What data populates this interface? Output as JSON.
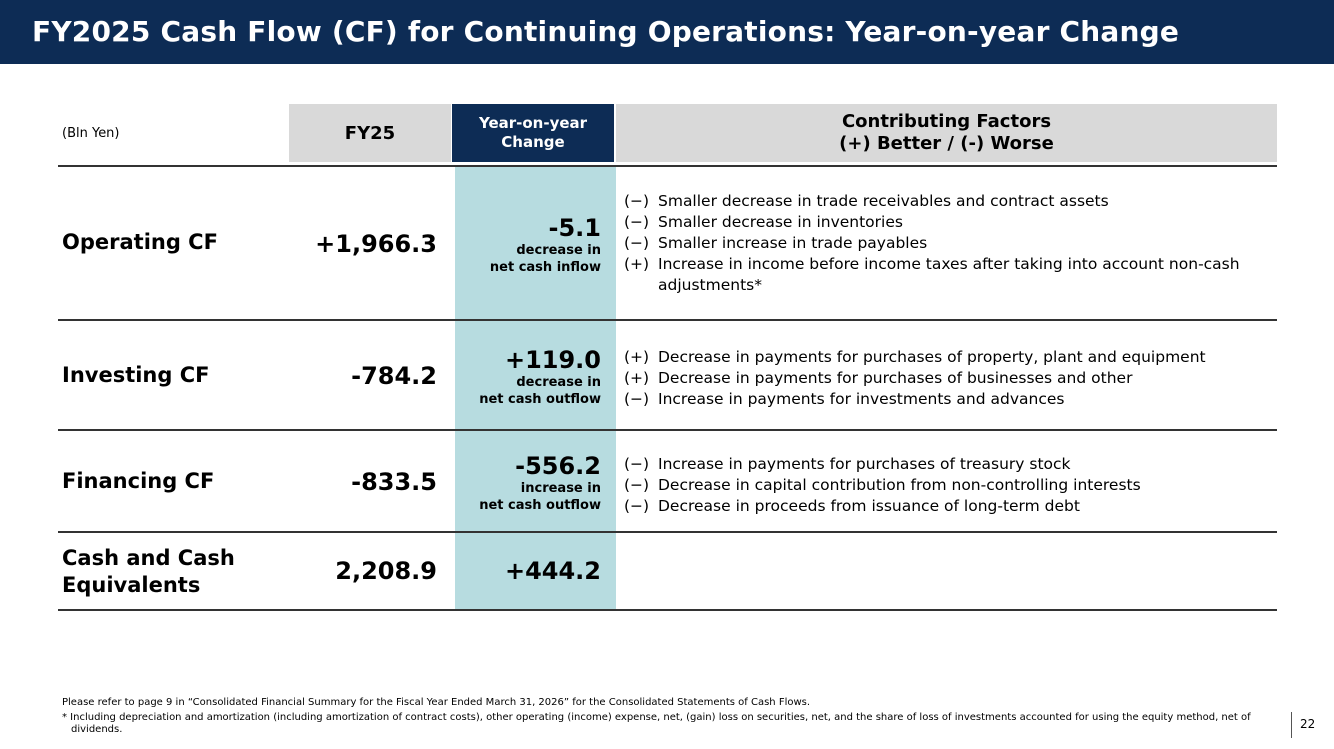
{
  "header": {
    "title": "FY2025 Cash Flow (CF) for Continuing Operations: Year-on-year Change"
  },
  "table": {
    "unit": "(Bln Yen)",
    "columns": {
      "fy": "FY25",
      "yoy_line1": "Year-on-year",
      "yoy_line2": "Change",
      "factors_line1": "Contributing Factors",
      "factors_line2": "(+) Better / (-) Worse"
    },
    "rows": [
      {
        "label": "Operating CF",
        "value": "+1,966.3",
        "change": "-5.1",
        "change_note1": "decrease in",
        "change_note2": "net cash inflow",
        "factors": [
          {
            "sign": "(−)",
            "text": "Smaller decrease in trade receivables and contract assets"
          },
          {
            "sign": "(−)",
            "text": "Smaller decrease in inventories"
          },
          {
            "sign": "(−)",
            "text": "Smaller increase in trade payables"
          },
          {
            "sign": "(+)",
            "text": "Increase in income before income taxes after taking into account non-cash adjustments*"
          }
        ]
      },
      {
        "label": "Investing CF",
        "value": "-784.2",
        "change": "+119.0",
        "change_note1": "decrease in",
        "change_note2": "net cash outflow",
        "factors": [
          {
            "sign": "(+)",
            "text": "Decrease in payments for purchases of property, plant and equipment"
          },
          {
            "sign": "(+)",
            "text": "Decrease in payments for purchases of businesses and other"
          },
          {
            "sign": "(−)",
            "text": "Increase in payments for investments and advances"
          }
        ]
      },
      {
        "label": "Financing CF",
        "value": "-833.5",
        "change": "-556.2",
        "change_note1": "increase in",
        "change_note2": "net cash outflow",
        "factors": [
          {
            "sign": "(−)",
            "text": "Increase in payments for purchases of treasury stock"
          },
          {
            "sign": "(−)",
            "text": "Decrease in capital contribution from non-controlling interests"
          },
          {
            "sign": "(−)",
            "text": "Decrease in proceeds from issuance of long-term debt"
          }
        ]
      },
      {
        "label_line1": "Cash and Cash",
        "label_line2": "Equivalents",
        "value": "2,208.9",
        "change": "+444.2"
      }
    ]
  },
  "footnotes": {
    "note1": "Please refer to page 9 in “Consolidated Financial Summary for the Fiscal Year Ended March 31, 2026” for the Consolidated Statements of Cash Flows.",
    "note2": "* Including depreciation and amortization (including amortization of contract costs), other operating (income) expense, net, (gain) loss on securities, net, and the share of loss of investments accounted for using the equity method, net of dividends."
  },
  "page_number": "22",
  "colors": {
    "title_bar": "#0d2c55",
    "header_gray": "#d9d9d9",
    "yoy_highlight": "#b7dce0"
  }
}
